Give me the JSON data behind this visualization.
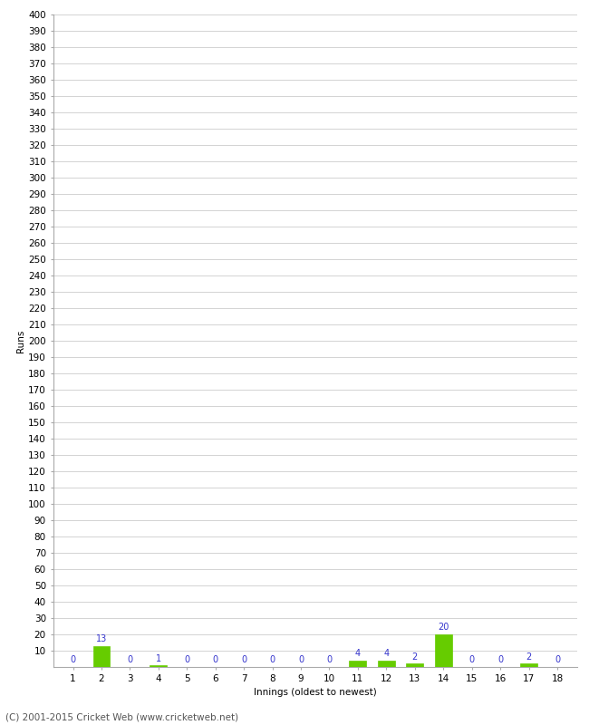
{
  "xlabel": "Innings (oldest to newest)",
  "ylabel": "Runs",
  "categories": [
    1,
    2,
    3,
    4,
    5,
    6,
    7,
    8,
    9,
    10,
    11,
    12,
    13,
    14,
    15,
    16,
    17,
    18
  ],
  "values": [
    0,
    13,
    0,
    1,
    0,
    0,
    0,
    0,
    0,
    0,
    4,
    4,
    2,
    20,
    0,
    0,
    2,
    0
  ],
  "bar_color": "#66cc00",
  "bar_edge_color": "#66cc00",
  "label_color": "#3333cc",
  "ylim": [
    0,
    400
  ],
  "yticks": [
    10,
    20,
    30,
    40,
    50,
    60,
    70,
    80,
    90,
    100,
    110,
    120,
    130,
    140,
    150,
    160,
    170,
    180,
    190,
    200,
    210,
    220,
    230,
    240,
    250,
    260,
    270,
    280,
    290,
    300,
    310,
    320,
    330,
    340,
    350,
    360,
    370,
    380,
    390,
    400
  ],
  "background_color": "#ffffff",
  "grid_color": "#cccccc",
  "footer": "(C) 2001-2015 Cricket Web (www.cricketweb.net)",
  "footer_color": "#555555",
  "label_fontsize": 7,
  "axis_fontsize": 7.5,
  "ylabel_fontsize": 7.5,
  "footer_fontsize": 7.5
}
